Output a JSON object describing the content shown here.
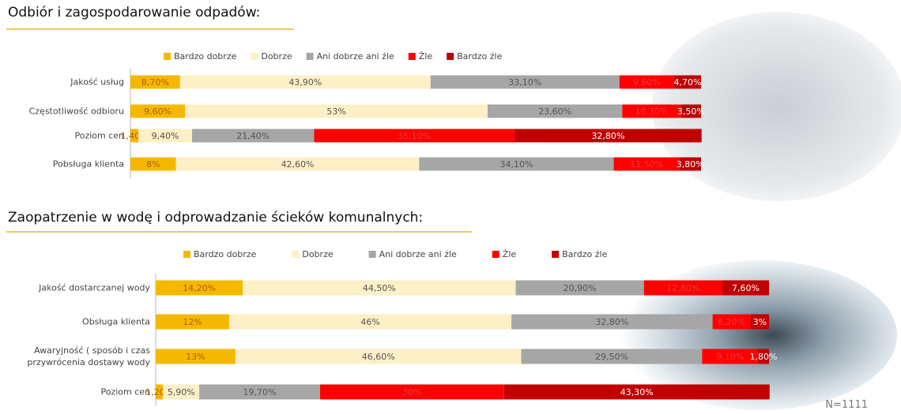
{
  "chart_data": [
    {
      "type": "bar",
      "orientation": "horizontal",
      "stacked": true,
      "title": "Odbiór i zagospodarowanie odpadów:",
      "categories": [
        "Jakość usług",
        "Częstotliwość odbioru",
        "Poziom cen",
        "Pobsługa klienta"
      ],
      "xlim": [
        0,
        100
      ],
      "series": [
        {
          "name": "Bardzo dobrze",
          "color": "#f5b800",
          "label_color": "#b35c00",
          "values": [
            8.7,
            9.6,
            1.4,
            8
          ],
          "value_labels": [
            "8,70%",
            "9,60%",
            "1,40%",
            "8%"
          ]
        },
        {
          "name": "Dobrze",
          "color": "#fdefc6",
          "label_color": "#555555",
          "values": [
            43.9,
            53,
            9.4,
            42.6
          ],
          "value_labels": [
            "43,90%",
            "53%",
            "9,40%",
            "42,60%"
          ]
        },
        {
          "name": "Ani dobrze ani źle",
          "color": "#a6a6a6",
          "label_color": "#555555",
          "values": [
            33.1,
            23.6,
            21.4,
            34.1
          ],
          "value_labels": [
            "33,10%",
            "23,60%",
            "21,40%",
            "34,10%"
          ]
        },
        {
          "name": "Źle",
          "color": "#ff0000",
          "label_color": "#e23b3b",
          "values": [
            9.6,
            10.3,
            35.1,
            11.5
          ],
          "value_labels": [
            "9,60%",
            "10,30%",
            "35,10%",
            "11,50%"
          ]
        },
        {
          "name": "Bardzo źle",
          "color": "#c00000",
          "label_color": "#ffffff",
          "values": [
            4.7,
            3.5,
            32.8,
            3.8
          ],
          "value_labels": [
            "4,70%",
            "3,50%",
            "32,80%",
            "3,80%"
          ]
        }
      ]
    },
    {
      "type": "bar",
      "orientation": "horizontal",
      "stacked": true,
      "title": "Zaopatrzenie w wodę i odprowadzanie ścieków komunalnych:",
      "categories": [
        "Jakość dostarczanej wody",
        "Obsługa klienta",
        "Awaryjność ( sposób i czas przywrócenia dostawy wody",
        "Poziom cen"
      ],
      "xlim": [
        0,
        100
      ],
      "series": [
        {
          "name": "Bardzo dobrze",
          "color": "#f5b800",
          "label_color": "#b35c00",
          "values": [
            14.2,
            12,
            13,
            1.2
          ],
          "value_labels": [
            "14,20%",
            "12%",
            "13%",
            "1,20%"
          ]
        },
        {
          "name": "Dobrze",
          "color": "#fdefc6",
          "label_color": "#555555",
          "values": [
            44.5,
            46,
            46.6,
            5.9
          ],
          "value_labels": [
            "44,50%",
            "46%",
            "46,60%",
            "5,90%"
          ]
        },
        {
          "name": "Ani dobrze ani źle",
          "color": "#a6a6a6",
          "label_color": "#555555",
          "values": [
            20.9,
            32.8,
            29.5,
            19.7
          ],
          "value_labels": [
            "20,90%",
            "32,80%",
            "29,50%",
            "19,70%"
          ]
        },
        {
          "name": "Źle",
          "color": "#ff0000",
          "label_color": "#e23b3b",
          "values": [
            12.8,
            6.2,
            9.1,
            30
          ],
          "value_labels": [
            "12,80%",
            "6,20%",
            "9,10%",
            "30%"
          ]
        },
        {
          "name": "Bardzo źle",
          "color": "#c00000",
          "label_color": "#ffffff",
          "values": [
            7.6,
            3,
            1.8,
            43.3
          ],
          "value_labels": [
            "7,60%",
            "3%",
            "1,80%",
            "43,30%"
          ]
        }
      ]
    }
  ],
  "note": "N=1111"
}
